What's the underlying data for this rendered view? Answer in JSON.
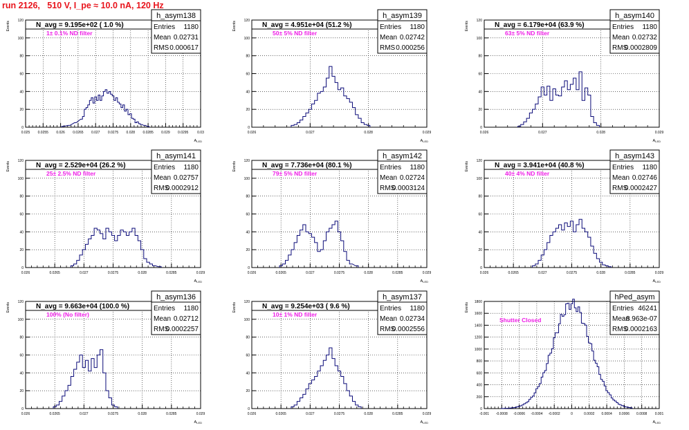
{
  "title": "run 2126,   510 V, I_pe ≈ 10.0 nA, 120 Hz",
  "chart_data": [
    {
      "type": "histogram",
      "name": "h_asym138",
      "n_avg": "N_avg = 9.195e+02 ( 1.0 %)",
      "filter": "1± 0.1% ND filter",
      "stats": {
        "entries": "1180",
        "mean": "0.02731",
        "rms": "0.000617"
      },
      "xlim": [
        0.025,
        0.03
      ],
      "ylim": [
        0,
        120
      ],
      "xticks": [
        "0.025",
        "0.0255",
        "0.026",
        "0.0265",
        "0.027",
        "0.0275",
        "0.028",
        "0.0285",
        "0.029",
        "0.0295",
        "0.03"
      ],
      "yticks": [
        "0",
        "20",
        "40",
        "60",
        "80",
        "100",
        "120"
      ],
      "ylabel": "Events",
      "xlabel": "",
      "bins": [
        [
          0.02606,
          1
        ],
        [
          0.02624,
          2
        ],
        [
          0.02642,
          5
        ],
        [
          0.0266,
          9
        ],
        [
          0.02665,
          12
        ],
        [
          0.0267,
          20
        ],
        [
          0.02675,
          22
        ],
        [
          0.0268,
          25
        ],
        [
          0.02685,
          30
        ],
        [
          0.0269,
          33
        ],
        [
          0.02695,
          27
        ],
        [
          0.027,
          34
        ],
        [
          0.02705,
          30
        ],
        [
          0.0271,
          36
        ],
        [
          0.02715,
          30
        ],
        [
          0.0272,
          35
        ],
        [
          0.02725,
          40
        ],
        [
          0.0273,
          42
        ],
        [
          0.02735,
          38
        ],
        [
          0.0274,
          40
        ],
        [
          0.02745,
          37
        ],
        [
          0.0275,
          35
        ],
        [
          0.02755,
          30
        ],
        [
          0.0276,
          33
        ],
        [
          0.02765,
          28
        ],
        [
          0.0277,
          26
        ],
        [
          0.02775,
          22
        ],
        [
          0.0278,
          25
        ],
        [
          0.02785,
          18
        ],
        [
          0.0279,
          20
        ],
        [
          0.02795,
          14
        ],
        [
          0.028,
          15
        ],
        [
          0.02805,
          10
        ],
        [
          0.0281,
          9
        ],
        [
          0.02815,
          5
        ],
        [
          0.0282,
          6
        ],
        [
          0.02825,
          4
        ],
        [
          0.0283,
          3
        ],
        [
          0.0284,
          2
        ],
        [
          0.0285,
          1
        ]
      ]
    },
    {
      "type": "histogram",
      "name": "h_asym139",
      "n_avg": "N_avg = 4.951e+04 (51.2 %)",
      "filter": "50± 5% ND filter",
      "stats": {
        "entries": "1180",
        "mean": "0.02742",
        "rms": "0.000256"
      },
      "xlim": [
        0.026,
        0.029
      ],
      "ylim": [
        0,
        120
      ],
      "xticks": [
        "0.026",
        "0.027",
        "0.028",
        "0.029"
      ],
      "yticks": [
        "0",
        "20",
        "40",
        "60",
        "80",
        "100",
        "120"
      ],
      "ylabel": "Events",
      "xlabel": "",
      "bins": [
        [
          0.0267,
          2
        ],
        [
          0.02675,
          3
        ],
        [
          0.0268,
          5
        ],
        [
          0.02685,
          8
        ],
        [
          0.0269,
          12
        ],
        [
          0.02695,
          16
        ],
        [
          0.027,
          20
        ],
        [
          0.02705,
          26
        ],
        [
          0.0271,
          30
        ],
        [
          0.02715,
          38
        ],
        [
          0.0272,
          40
        ],
        [
          0.02725,
          45
        ],
        [
          0.0273,
          55
        ],
        [
          0.02735,
          68
        ],
        [
          0.0274,
          57
        ],
        [
          0.02745,
          50
        ],
        [
          0.0275,
          42
        ],
        [
          0.02755,
          44
        ],
        [
          0.0276,
          35
        ],
        [
          0.02765,
          32
        ],
        [
          0.0277,
          28
        ],
        [
          0.02775,
          22
        ],
        [
          0.0278,
          14
        ],
        [
          0.02785,
          10
        ],
        [
          0.0279,
          5
        ],
        [
          0.02795,
          3
        ],
        [
          0.028,
          2
        ]
      ]
    },
    {
      "type": "histogram",
      "name": "h_asym140",
      "n_avg": "N_avg = 6.179e+04 (63.9 %)",
      "filter": "63± 5% ND filter",
      "stats": {
        "entries": "1180",
        "mean": "0.02732",
        "rms": "0.0002809"
      },
      "xlim": [
        0.026,
        0.029
      ],
      "ylim": [
        0,
        120
      ],
      "xticks": [
        "0.026",
        "0.027",
        "0.028",
        "0.029"
      ],
      "yticks": [
        "0",
        "20",
        "40",
        "60",
        "80",
        "100",
        "120"
      ],
      "ylabel": "Events",
      "xlabel": "",
      "bins": [
        [
          0.0266,
          1
        ],
        [
          0.02665,
          3
        ],
        [
          0.0267,
          6
        ],
        [
          0.02675,
          10
        ],
        [
          0.0268,
          16
        ],
        [
          0.02685,
          20
        ],
        [
          0.0269,
          26
        ],
        [
          0.02695,
          34
        ],
        [
          0.027,
          45
        ],
        [
          0.02705,
          36
        ],
        [
          0.0271,
          46
        ],
        [
          0.02715,
          30
        ],
        [
          0.0272,
          43
        ],
        [
          0.02725,
          36
        ],
        [
          0.0273,
          35
        ],
        [
          0.02735,
          45
        ],
        [
          0.0274,
          52
        ],
        [
          0.02745,
          42
        ],
        [
          0.0275,
          48
        ],
        [
          0.02755,
          55
        ],
        [
          0.0276,
          42
        ],
        [
          0.02765,
          62
        ],
        [
          0.0277,
          30
        ],
        [
          0.02775,
          44
        ],
        [
          0.0278,
          36
        ],
        [
          0.02785,
          12
        ],
        [
          0.0279,
          5
        ],
        [
          0.02795,
          2
        ]
      ]
    },
    {
      "type": "histogram",
      "name": "h_asym141",
      "n_avg": "N_avg = 2.529e+04 (26.2 %)",
      "filter": "25± 2.5% ND filter",
      "stats": {
        "entries": "1180",
        "mean": "0.02757",
        "rms": "0.0002912"
      },
      "xlim": [
        0.026,
        0.029
      ],
      "ylim": [
        0,
        120
      ],
      "xticks": [
        "0.026",
        "0.0265",
        "0.027",
        "0.0275",
        "0.028",
        "0.0285",
        "0.029"
      ],
      "yticks": [
        "0",
        "20",
        "40",
        "60",
        "80",
        "100",
        "120"
      ],
      "ylabel": "Events",
      "xlabel": "",
      "bins": [
        [
          0.0268,
          2
        ],
        [
          0.02685,
          4
        ],
        [
          0.0269,
          8
        ],
        [
          0.02695,
          14
        ],
        [
          0.027,
          20
        ],
        [
          0.02705,
          26
        ],
        [
          0.0271,
          32
        ],
        [
          0.02715,
          36
        ],
        [
          0.0272,
          44
        ],
        [
          0.02725,
          42
        ],
        [
          0.0273,
          38
        ],
        [
          0.02735,
          32
        ],
        [
          0.0274,
          44
        ],
        [
          0.02745,
          40
        ],
        [
          0.0275,
          36
        ],
        [
          0.02755,
          30
        ],
        [
          0.0276,
          36
        ],
        [
          0.02765,
          42
        ],
        [
          0.0277,
          40
        ],
        [
          0.02775,
          36
        ],
        [
          0.0278,
          40
        ],
        [
          0.02785,
          44
        ],
        [
          0.0279,
          36
        ],
        [
          0.02795,
          30
        ],
        [
          0.028,
          20
        ],
        [
          0.02805,
          10
        ],
        [
          0.0281,
          6
        ],
        [
          0.02815,
          4
        ],
        [
          0.0282,
          2
        ],
        [
          0.0283,
          1
        ]
      ]
    },
    {
      "type": "histogram",
      "name": "h_asym142",
      "n_avg": "N_avg = 7.736e+04 (80.1 %)",
      "filter": "79± 5% ND filter",
      "stats": {
        "entries": "1180",
        "mean": "0.02724",
        "rms": "0.0003124"
      },
      "xlim": [
        0.026,
        0.029
      ],
      "ylim": [
        0,
        120
      ],
      "xticks": [
        "0.026",
        "0.0265",
        "0.027",
        "0.0275",
        "0.028",
        "0.0285",
        "0.029"
      ],
      "yticks": [
        "0",
        "20",
        "40",
        "60",
        "80",
        "100",
        "120"
      ],
      "ylabel": "Events",
      "xlabel": "",
      "bins": [
        [
          0.0265,
          2
        ],
        [
          0.02655,
          4
        ],
        [
          0.0266,
          8
        ],
        [
          0.02665,
          14
        ],
        [
          0.0267,
          20
        ],
        [
          0.02675,
          28
        ],
        [
          0.0268,
          36
        ],
        [
          0.02685,
          42
        ],
        [
          0.0269,
          48
        ],
        [
          0.02695,
          40
        ],
        [
          0.027,
          38
        ],
        [
          0.02705,
          34
        ],
        [
          0.0271,
          28
        ],
        [
          0.02715,
          18
        ],
        [
          0.0272,
          20
        ],
        [
          0.02725,
          30
        ],
        [
          0.0273,
          40
        ],
        [
          0.02735,
          44
        ],
        [
          0.0274,
          48
        ],
        [
          0.02745,
          52
        ],
        [
          0.0275,
          40
        ],
        [
          0.02755,
          30
        ],
        [
          0.0276,
          18
        ],
        [
          0.02765,
          8
        ],
        [
          0.0277,
          4
        ],
        [
          0.0278,
          2
        ]
      ]
    },
    {
      "type": "histogram",
      "name": "h_asym143",
      "n_avg": "N_avg = 3.941e+04 (40.8 %)",
      "filter": "40± 4% ND filter",
      "stats": {
        "entries": "1180",
        "mean": "0.02746",
        "rms": "0.0002427"
      },
      "xlim": [
        0.026,
        0.029
      ],
      "ylim": [
        0,
        120
      ],
      "xticks": [
        "0.026",
        "0.0265",
        "0.027",
        "0.0275",
        "0.028",
        "0.0285",
        "0.029"
      ],
      "yticks": [
        "0",
        "20",
        "40",
        "60",
        "80",
        "100",
        "120"
      ],
      "ylabel": "Events",
      "xlabel": "",
      "bins": [
        [
          0.02685,
          2
        ],
        [
          0.0269,
          4
        ],
        [
          0.02695,
          8
        ],
        [
          0.027,
          14
        ],
        [
          0.02705,
          20
        ],
        [
          0.0271,
          28
        ],
        [
          0.02715,
          36
        ],
        [
          0.0272,
          40
        ],
        [
          0.02725,
          44
        ],
        [
          0.0273,
          48
        ],
        [
          0.02735,
          42
        ],
        [
          0.0274,
          50
        ],
        [
          0.02745,
          46
        ],
        [
          0.0275,
          52
        ],
        [
          0.02755,
          40
        ],
        [
          0.0276,
          48
        ],
        [
          0.02765,
          54
        ],
        [
          0.0277,
          44
        ],
        [
          0.02775,
          40
        ],
        [
          0.0278,
          34
        ],
        [
          0.02785,
          24
        ],
        [
          0.0279,
          16
        ],
        [
          0.02795,
          10
        ],
        [
          0.028,
          6
        ],
        [
          0.02805,
          3
        ],
        [
          0.0281,
          2
        ],
        [
          0.02815,
          1
        ]
      ]
    },
    {
      "type": "histogram",
      "name": "h_asym136",
      "n_avg": "N_avg = 9.663e+04 (100.0 %)",
      "filter": "100% (No filter)",
      "stats": {
        "entries": "1180",
        "mean": "0.02712",
        "rms": "0.0002257"
      },
      "xlim": [
        0.026,
        0.029
      ],
      "ylim": [
        0,
        120
      ],
      "xticks": [
        "0.026",
        "0.0265",
        "0.027",
        "0.0275",
        "0.028",
        "0.0285",
        "0.029"
      ],
      "yticks": [
        "0",
        "20",
        "40",
        "60",
        "80",
        "100",
        "120"
      ],
      "ylabel": "Events",
      "xlabel": "",
      "bins": [
        [
          0.0265,
          2
        ],
        [
          0.02655,
          4
        ],
        [
          0.0266,
          8
        ],
        [
          0.02665,
          14
        ],
        [
          0.0267,
          20
        ],
        [
          0.02675,
          26
        ],
        [
          0.0268,
          36
        ],
        [
          0.02685,
          44
        ],
        [
          0.0269,
          52
        ],
        [
          0.02695,
          60
        ],
        [
          0.027,
          46
        ],
        [
          0.02705,
          54
        ],
        [
          0.0271,
          42
        ],
        [
          0.02715,
          56
        ],
        [
          0.0272,
          46
        ],
        [
          0.02725,
          60
        ],
        [
          0.0273,
          66
        ],
        [
          0.02735,
          40
        ],
        [
          0.0274,
          20
        ],
        [
          0.02745,
          12
        ],
        [
          0.0275,
          4
        ],
        [
          0.02755,
          2
        ]
      ]
    },
    {
      "type": "histogram",
      "name": "h_asym137",
      "n_avg": "N_avg = 9.254e+03 ( 9.6 %)",
      "filter": "10± 1% ND filter",
      "stats": {
        "entries": "1180",
        "mean": "0.02734",
        "rms": "0.0002556"
      },
      "xlim": [
        0.026,
        0.029
      ],
      "ylim": [
        0,
        120
      ],
      "xticks": [
        "0.026",
        "0.0265",
        "0.027",
        "0.0275",
        "0.028",
        "0.0285",
        "0.029"
      ],
      "yticks": [
        "0",
        "20",
        "40",
        "60",
        "80",
        "100",
        "120"
      ],
      "ylabel": "Events",
      "xlabel": "",
      "bins": [
        [
          0.0267,
          2
        ],
        [
          0.02675,
          4
        ],
        [
          0.0268,
          8
        ],
        [
          0.02685,
          12
        ],
        [
          0.0269,
          16
        ],
        [
          0.02695,
          22
        ],
        [
          0.027,
          28
        ],
        [
          0.02705,
          32
        ],
        [
          0.0271,
          36
        ],
        [
          0.02715,
          42
        ],
        [
          0.0272,
          48
        ],
        [
          0.02725,
          54
        ],
        [
          0.0273,
          60
        ],
        [
          0.02735,
          68
        ],
        [
          0.0274,
          56
        ],
        [
          0.02745,
          48
        ],
        [
          0.0275,
          42
        ],
        [
          0.02755,
          36
        ],
        [
          0.0276,
          28
        ],
        [
          0.02765,
          20
        ],
        [
          0.0277,
          14
        ],
        [
          0.02775,
          8
        ],
        [
          0.0278,
          4
        ],
        [
          0.02785,
          2
        ]
      ]
    },
    {
      "type": "histogram",
      "name": "hPed_asym",
      "n_avg": "",
      "filter": "Shutter Closed",
      "stats": {
        "entries": "46241",
        "mean": "8.963e-07",
        "rms": "0.0002163"
      },
      "xlim": [
        -0.001,
        0.001
      ],
      "ylim": [
        0,
        1800
      ],
      "xticks": [
        "-0.001",
        "-0.0008",
        "-0.0006",
        "-0.0004",
        "-0.0002",
        "0",
        "0.0002",
        "0.0004",
        "0.0006",
        "0.0008",
        "0.001"
      ],
      "yticks": [
        "0",
        "200",
        "400",
        "600",
        "800",
        "1000",
        "1200",
        "1400",
        "1600",
        "1800"
      ],
      "ylabel": "Events",
      "xlabel": "",
      "bins": []
    }
  ],
  "x_axis_label": "A",
  "x_axis_sub": "LED"
}
